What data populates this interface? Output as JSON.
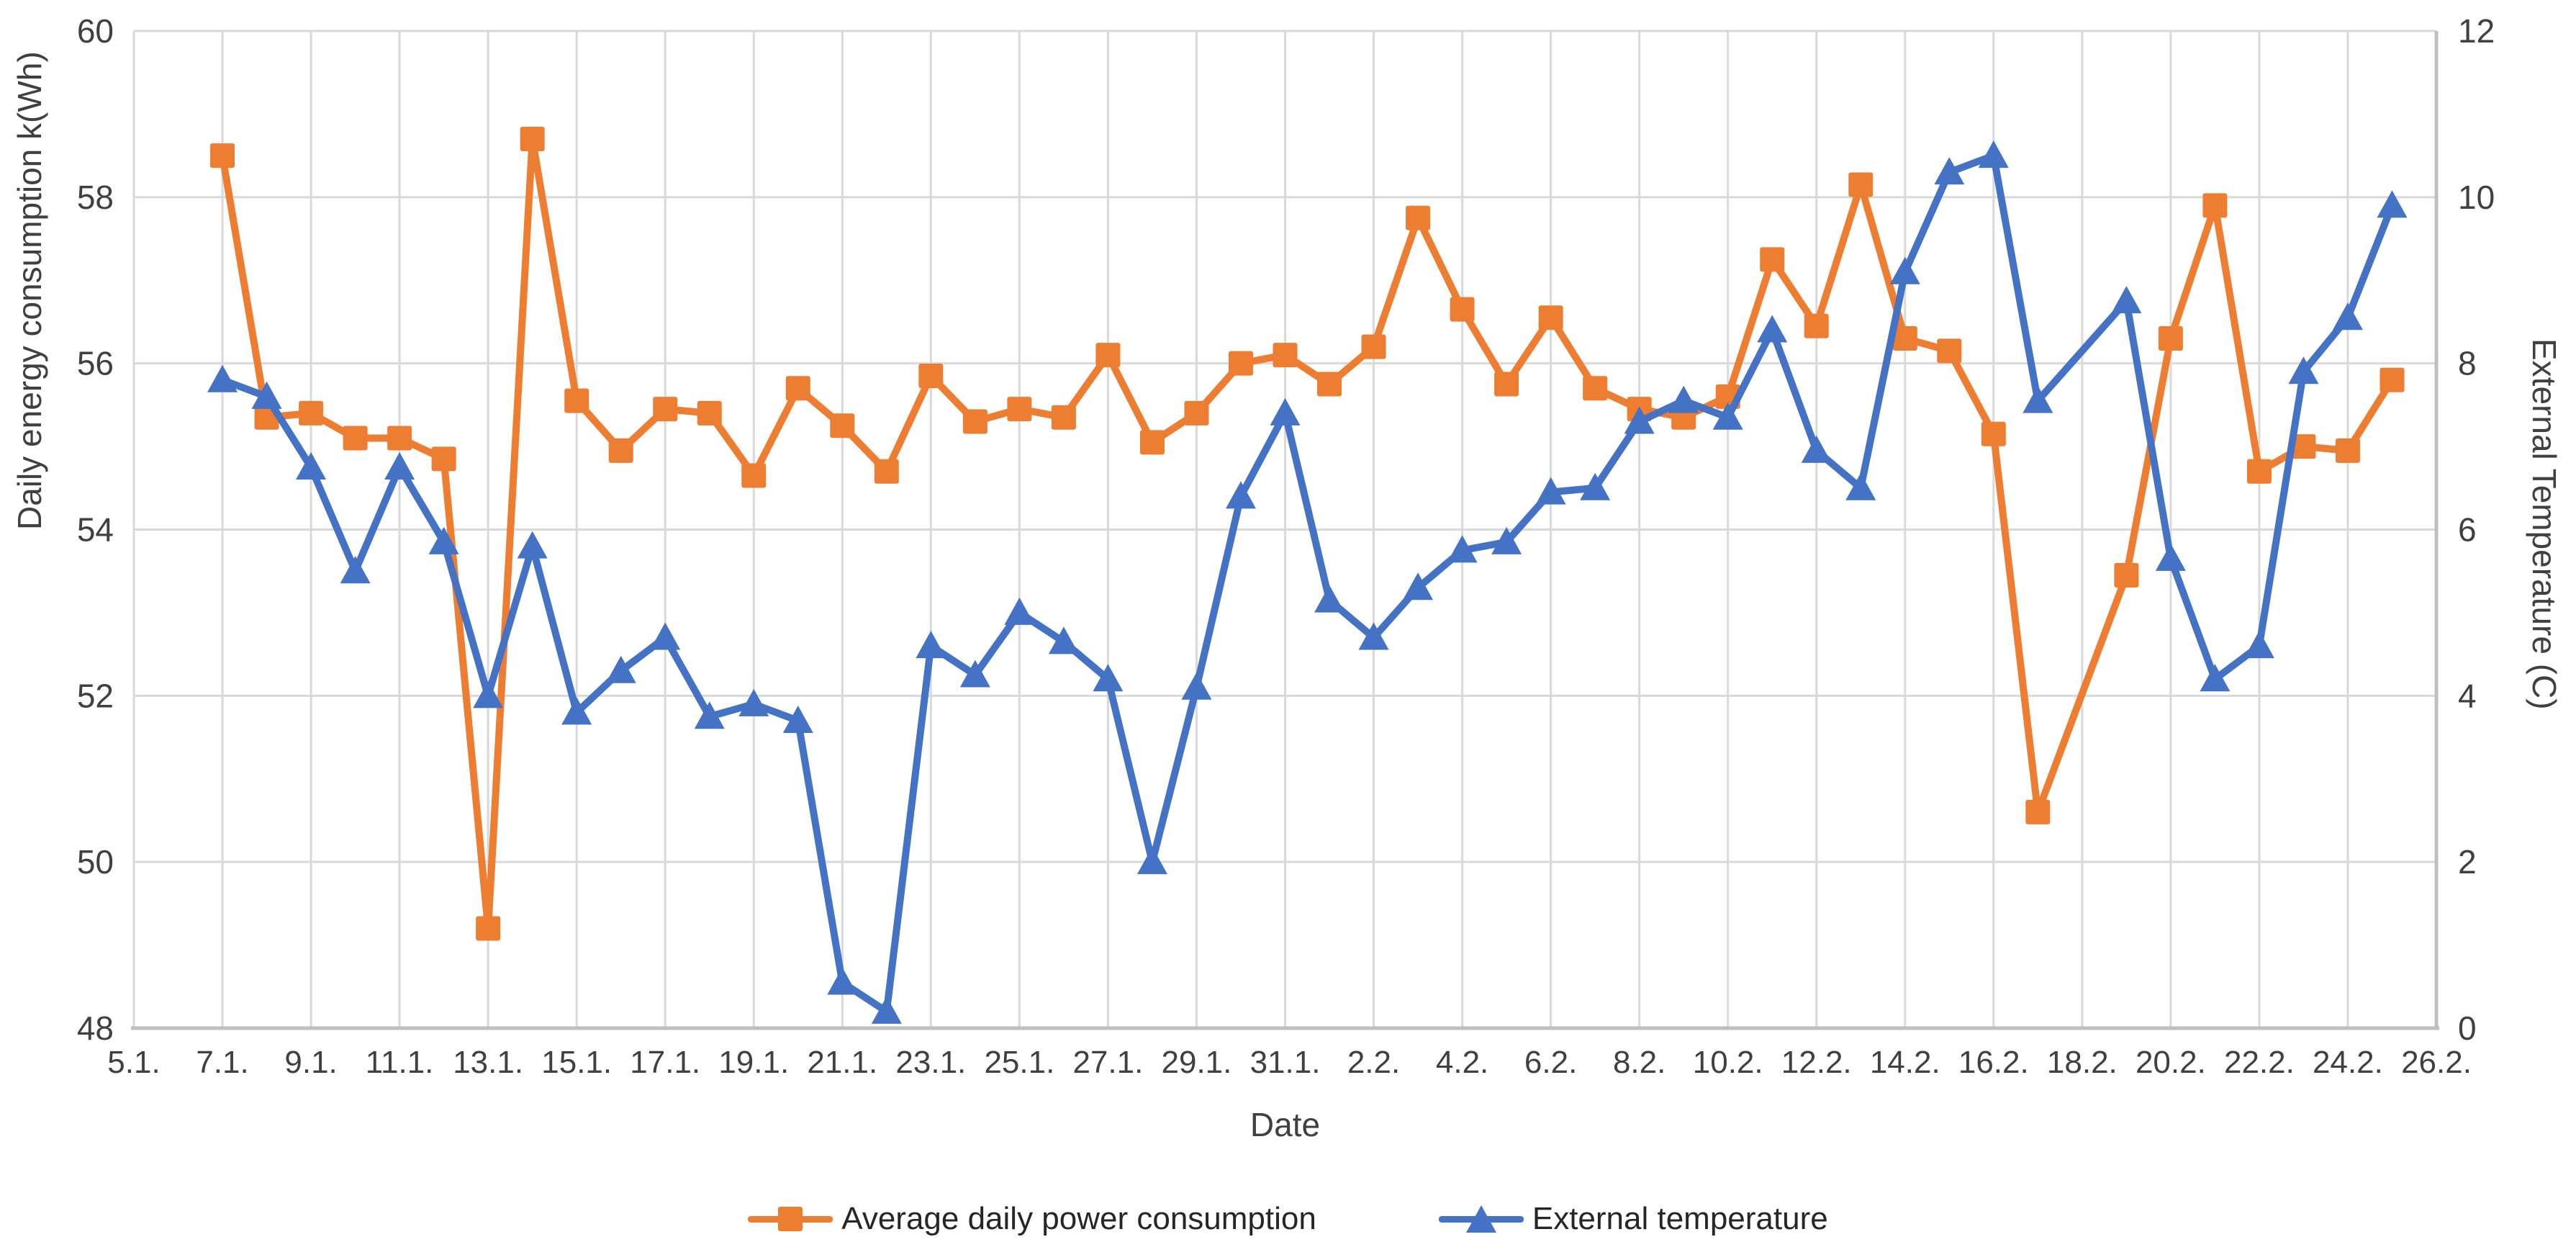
{
  "chart_data": {
    "type": "line",
    "title": "",
    "xlabel": "Date",
    "ylabel_left": "Daily energy consumption k(Wh)",
    "ylabel_right": "External Temperature (C)",
    "grid": true,
    "legend_position": "bottom",
    "x_axis": {
      "tick_labels": [
        "5.1.",
        "7.1.",
        "9.1.",
        "11.1.",
        "13.1.",
        "15.1.",
        "17.1.",
        "19.1.",
        "21.1.",
        "23.1.",
        "25.1.",
        "27.1.",
        "29.1.",
        "31.1.",
        "2.2.",
        "4.2.",
        "6.2.",
        "8.2.",
        "10.2.",
        "12.2.",
        "14.2.",
        "16.2.",
        "18.2.",
        "20.2.",
        "22.2.",
        "24.2.",
        "26.2."
      ],
      "start_label": "5.1.",
      "end_label": "26.2.",
      "days_span": 52
    },
    "y_axis_left": {
      "min": 48,
      "max": 60,
      "tick_labels": [
        "48",
        "50",
        "52",
        "54",
        "56",
        "58",
        "60"
      ]
    },
    "y_axis_right": {
      "min": 0,
      "max": 12,
      "tick_labels": [
        "0",
        "2",
        "4",
        "6",
        "8",
        "10",
        "12"
      ]
    },
    "dates": [
      "7.1.",
      "8.1.",
      "9.1.",
      "10.1.",
      "11.1.",
      "12.1.",
      "13.1.",
      "14.1.",
      "15.1.",
      "16.1.",
      "17.1.",
      "18.1.",
      "19.1.",
      "20.1.",
      "21.1.",
      "22.1.",
      "23.1.",
      "24.1.",
      "25.1.",
      "26.1.",
      "27.1.",
      "28.1.",
      "29.1.",
      "30.1.",
      "31.1.",
      "1.2.",
      "2.2.",
      "3.2.",
      "4.2.",
      "5.2.",
      "6.2.",
      "7.2.",
      "8.2.",
      "9.2.",
      "10.2.",
      "11.2.",
      "12.2.",
      "13.2.",
      "14.2.",
      "15.2.",
      "16.2.",
      "17.2.",
      "19.2.",
      "20.2.",
      "21.2.",
      "22.2.",
      "23.2.",
      "24.2.",
      "25.2."
    ],
    "series": [
      {
        "name": "Average daily power consumption",
        "axis": "left",
        "color": "#ED7D31",
        "marker": "square",
        "values": [
          58.5,
          55.35,
          55.4,
          55.1,
          55.1,
          54.85,
          49.2,
          58.7,
          55.55,
          54.95,
          55.45,
          55.4,
          54.65,
          55.7,
          55.25,
          54.7,
          55.85,
          55.3,
          55.45,
          55.35,
          56.1,
          55.05,
          55.4,
          56.0,
          56.1,
          55.75,
          56.2,
          57.75,
          56.65,
          55.75,
          56.55,
          55.7,
          55.45,
          55.35,
          55.6,
          57.25,
          56.45,
          58.15,
          56.3,
          56.15,
          55.15,
          50.6,
          53.45,
          56.3,
          57.9,
          54.7,
          55.0,
          54.95,
          55.8
        ]
      },
      {
        "name": "External temperature",
        "axis": "right",
        "color": "#4472C4",
        "marker": "triangle",
        "values": [
          7.8,
          7.6,
          6.75,
          5.5,
          6.75,
          5.85,
          4.0,
          5.8,
          3.8,
          4.3,
          4.7,
          3.75,
          3.9,
          3.7,
          0.55,
          0.2,
          4.6,
          4.25,
          5.0,
          4.65,
          4.2,
          2.0,
          4.1,
          6.4,
          7.4,
          5.15,
          4.7,
          5.3,
          5.75,
          5.85,
          6.45,
          6.5,
          7.3,
          7.55,
          7.35,
          8.4,
          6.95,
          6.5,
          9.1,
          10.3,
          10.5,
          7.55,
          8.75,
          5.65,
          4.2,
          4.6,
          7.9,
          8.55,
          9.9
        ]
      }
    ],
    "colors": {
      "gridline": "#D9D9D9",
      "axis_line": "#BFBFBF",
      "tick_label": "#404040",
      "series_power": "#ED7D31",
      "series_temperature": "#4472C4"
    }
  }
}
